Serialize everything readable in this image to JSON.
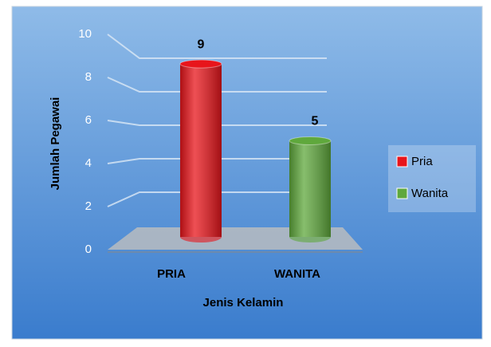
{
  "chart_data": {
    "type": "bar3d",
    "categories": [
      "PRIA",
      "WANITA"
    ],
    "series": [
      {
        "name": "Pria",
        "color": "#e8151b",
        "values": [
          9,
          null
        ]
      },
      {
        "name": "Wanita",
        "color": "#5fa83c",
        "values": [
          null,
          5
        ]
      }
    ],
    "ylim": [
      0,
      10
    ],
    "yticks": [
      0,
      2,
      4,
      6,
      8,
      10
    ],
    "grid": true,
    "xlabel": "Jenis Kelamin",
    "ylabel": "Jumlah Pegawai",
    "legend": "right"
  }
}
